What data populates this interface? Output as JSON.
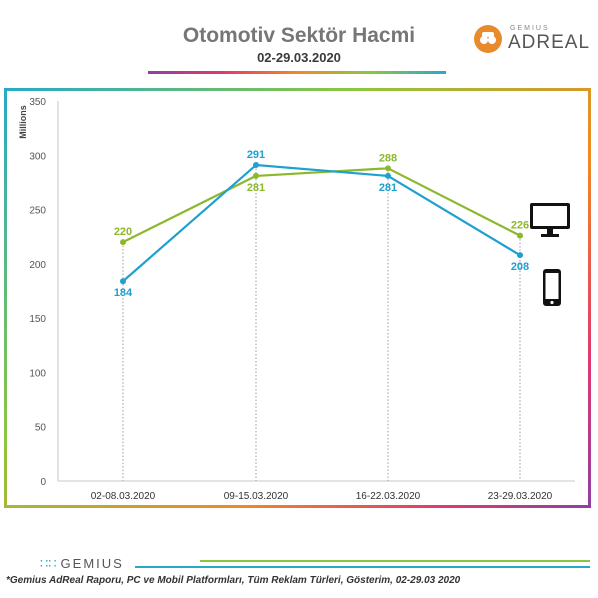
{
  "header": {
    "title": "Otomotiv Sektör Hacmi",
    "subtitle": "02-29.03.2020",
    "brand_small": "GEMIUS",
    "brand_big": "ADREAL"
  },
  "chart_data": {
    "type": "line",
    "categories": [
      "02-08.03.2020",
      "09-15.03.2020",
      "16-22.03.2020",
      "23-29.03.2020"
    ],
    "series": [
      {
        "name": "",
        "device": "pc-monitor-icon",
        "color": "#8cb82d",
        "values": [
          220,
          281,
          288,
          226
        ]
      },
      {
        "name": "",
        "device": "mobile-phone-icon",
        "color": "#1fa0cf",
        "values": [
          184,
          291,
          281,
          208
        ]
      }
    ],
    "ylabel": "Millions",
    "ylim": [
      0,
      350
    ],
    "yticks": [
      0,
      50,
      100,
      150,
      200,
      250,
      300,
      350
    ],
    "grid": false
  },
  "footer": {
    "brand": "GEMIUS",
    "note": "*Gemius AdReal Raporu, PC ve Mobil Platformları, Tüm Reklam Türleri, Gösterim, 02-29.03 2020"
  }
}
